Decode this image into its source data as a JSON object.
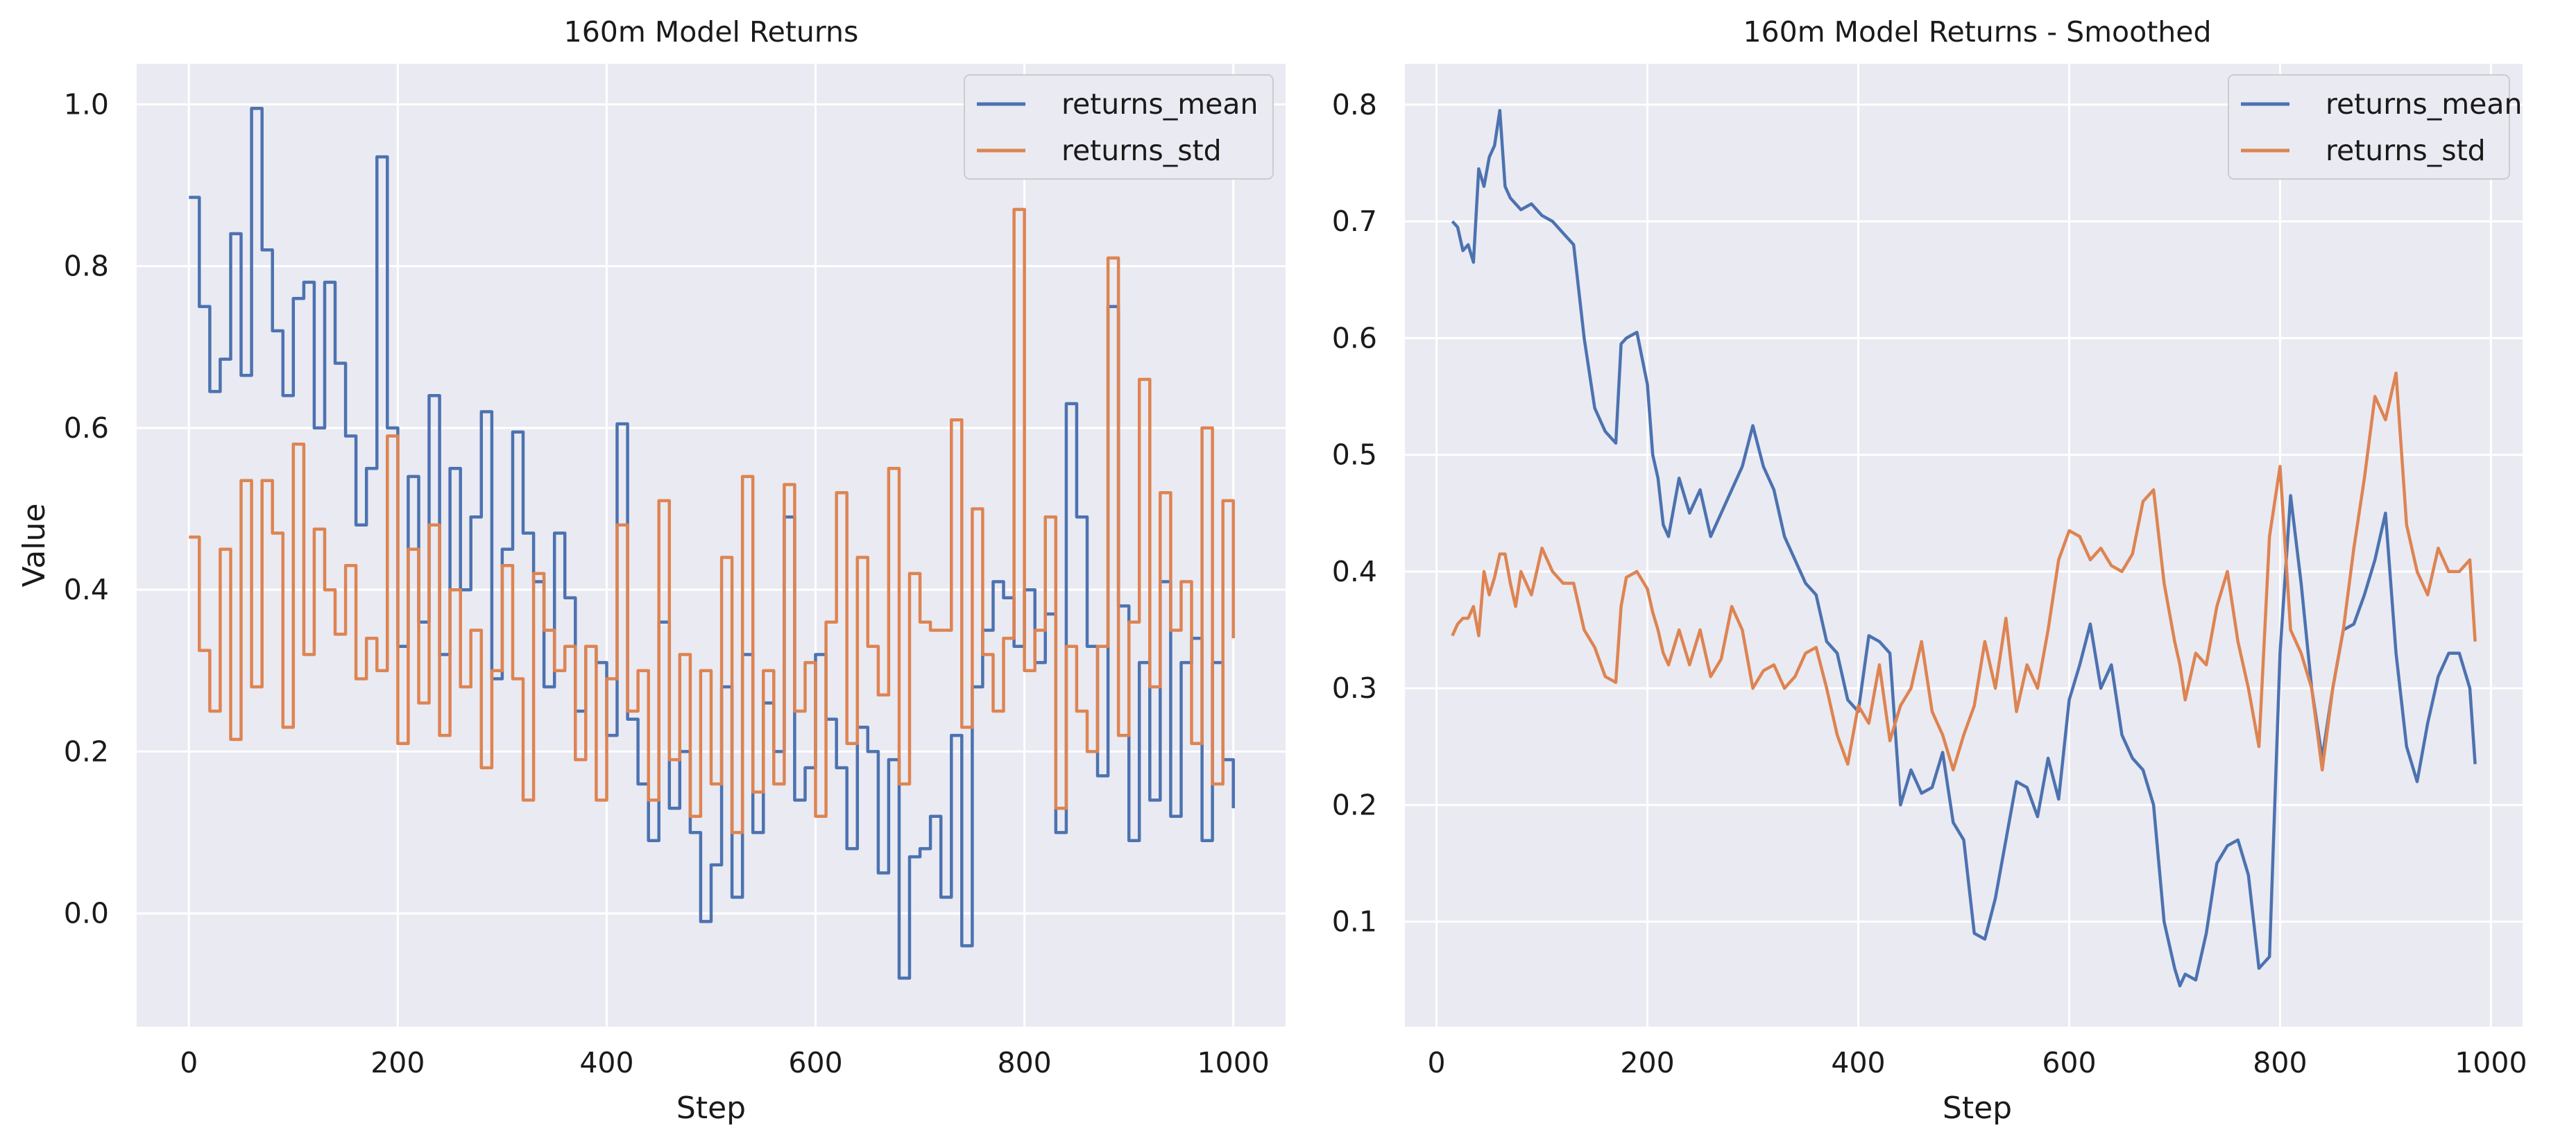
{
  "chart_data": [
    {
      "type": "line",
      "title": "160m Model Returns",
      "xlabel": "Step",
      "ylabel": "Value",
      "xlim": [
        -50,
        1050
      ],
      "ylim": [
        -0.14,
        1.05
      ],
      "xticks": [
        0,
        200,
        400,
        600,
        800,
        1000
      ],
      "yticks": [
        0.0,
        0.2,
        0.4,
        0.6,
        0.8,
        1.0
      ],
      "xtick_labels": [
        "0",
        "200",
        "400",
        "600",
        "800",
        "1000"
      ],
      "ytick_labels": [
        "0.0",
        "0.2",
        "0.4",
        "0.6",
        "0.8",
        "1.0"
      ],
      "grid": true,
      "legend_position": "top-right",
      "series": [
        {
          "name": "returns_mean",
          "color": "#4c72b0",
          "x": [
            0,
            10,
            20,
            30,
            40,
            50,
            60,
            70,
            80,
            90,
            100,
            110,
            120,
            130,
            140,
            150,
            160,
            170,
            180,
            190,
            200,
            210,
            220,
            230,
            240,
            250,
            260,
            270,
            280,
            290,
            300,
            310,
            320,
            330,
            340,
            350,
            360,
            370,
            380,
            390,
            400,
            410,
            420,
            430,
            440,
            450,
            460,
            470,
            480,
            490,
            500,
            510,
            520,
            530,
            540,
            550,
            560,
            570,
            580,
            590,
            600,
            610,
            620,
            630,
            640,
            650,
            660,
            670,
            680,
            690,
            700,
            710,
            720,
            730,
            740,
            750,
            760,
            770,
            780,
            790,
            800,
            810,
            820,
            830,
            840,
            850,
            860,
            870,
            880,
            890,
            900,
            910,
            920,
            930,
            940,
            950,
            960,
            970,
            980,
            990,
            1000
          ],
          "values": [
            0.885,
            0.75,
            0.645,
            0.685,
            0.84,
            0.665,
            0.995,
            0.82,
            0.72,
            0.64,
            0.76,
            0.78,
            0.6,
            0.78,
            0.68,
            0.59,
            0.48,
            0.55,
            0.935,
            0.6,
            0.33,
            0.54,
            0.36,
            0.64,
            0.32,
            0.55,
            0.4,
            0.49,
            0.62,
            0.29,
            0.45,
            0.595,
            0.47,
            0.41,
            0.28,
            0.47,
            0.39,
            0.25,
            0.33,
            0.31,
            0.22,
            0.605,
            0.24,
            0.16,
            0.09,
            0.36,
            0.13,
            0.2,
            0.1,
            -0.01,
            0.06,
            0.28,
            0.02,
            0.32,
            0.1,
            0.26,
            0.2,
            0.49,
            0.14,
            0.18,
            0.32,
            0.24,
            0.18,
            0.08,
            0.23,
            0.2,
            0.05,
            0.19,
            -0.08,
            0.07,
            0.08,
            0.12,
            0.02,
            0.22,
            -0.04,
            0.28,
            0.35,
            0.41,
            0.39,
            0.33,
            0.4,
            0.31,
            0.37,
            0.1,
            0.63,
            0.49,
            0.33,
            0.17,
            0.75,
            0.38,
            0.09,
            0.31,
            0.14,
            0.41,
            0.12,
            0.31,
            0.34,
            0.09,
            0.31,
            0.19,
            0.13
          ]
        },
        {
          "name": "returns_std",
          "color": "#dd8452",
          "x": [
            0,
            10,
            20,
            30,
            40,
            50,
            60,
            70,
            80,
            90,
            100,
            110,
            120,
            130,
            140,
            150,
            160,
            170,
            180,
            190,
            200,
            210,
            220,
            230,
            240,
            250,
            260,
            270,
            280,
            290,
            300,
            310,
            320,
            330,
            340,
            350,
            360,
            370,
            380,
            390,
            400,
            410,
            420,
            430,
            440,
            450,
            460,
            470,
            480,
            490,
            500,
            510,
            520,
            530,
            540,
            550,
            560,
            570,
            580,
            590,
            600,
            610,
            620,
            630,
            640,
            650,
            660,
            670,
            680,
            690,
            700,
            710,
            720,
            730,
            740,
            750,
            760,
            770,
            780,
            790,
            800,
            810,
            820,
            830,
            840,
            850,
            860,
            870,
            880,
            890,
            900,
            910,
            920,
            930,
            940,
            950,
            960,
            970,
            980,
            990,
            1000
          ],
          "values": [
            0.465,
            0.325,
            0.25,
            0.45,
            0.215,
            0.535,
            0.28,
            0.535,
            0.47,
            0.23,
            0.58,
            0.32,
            0.475,
            0.4,
            0.345,
            0.43,
            0.29,
            0.34,
            0.3,
            0.59,
            0.21,
            0.45,
            0.26,
            0.48,
            0.22,
            0.4,
            0.28,
            0.35,
            0.18,
            0.3,
            0.43,
            0.29,
            0.14,
            0.42,
            0.35,
            0.3,
            0.33,
            0.19,
            0.33,
            0.14,
            0.29,
            0.48,
            0.25,
            0.3,
            0.14,
            0.51,
            0.19,
            0.32,
            0.12,
            0.3,
            0.16,
            0.44,
            0.1,
            0.54,
            0.15,
            0.3,
            0.16,
            0.53,
            0.25,
            0.31,
            0.12,
            0.36,
            0.52,
            0.21,
            0.44,
            0.33,
            0.27,
            0.55,
            0.16,
            0.42,
            0.36,
            0.35,
            0.35,
            0.61,
            0.23,
            0.5,
            0.32,
            0.25,
            0.34,
            0.87,
            0.3,
            0.35,
            0.49,
            0.13,
            0.33,
            0.25,
            0.2,
            0.33,
            0.81,
            0.22,
            0.36,
            0.66,
            0.28,
            0.52,
            0.35,
            0.41,
            0.21,
            0.6,
            0.16,
            0.51,
            0.34
          ]
        }
      ]
    },
    {
      "type": "line",
      "title": "160m Model Returns - Smoothed",
      "xlabel": "Step",
      "ylabel": "",
      "xlim": [
        -30,
        1030
      ],
      "ylim": [
        0.01,
        0.835
      ],
      "xticks": [
        0,
        200,
        400,
        600,
        800,
        1000
      ],
      "yticks": [
        0.1,
        0.2,
        0.3,
        0.4,
        0.5,
        0.6,
        0.7,
        0.8
      ],
      "xtick_labels": [
        "0",
        "200",
        "400",
        "600",
        "800",
        "1000"
      ],
      "ytick_labels": [
        "0.1",
        "0.2",
        "0.3",
        "0.4",
        "0.5",
        "0.6",
        "0.7",
        "0.8"
      ],
      "grid": true,
      "legend_position": "top-right",
      "series": [
        {
          "name": "returns_mean",
          "color": "#4c72b0",
          "x": [
            15,
            20,
            25,
            30,
            35,
            40,
            45,
            50,
            55,
            60,
            65,
            70,
            75,
            80,
            90,
            100,
            110,
            120,
            130,
            140,
            150,
            160,
            170,
            175,
            180,
            190,
            200,
            205,
            210,
            215,
            220,
            230,
            240,
            250,
            260,
            270,
            280,
            290,
            300,
            310,
            320,
            330,
            340,
            350,
            360,
            370,
            380,
            390,
            400,
            410,
            420,
            430,
            440,
            450,
            460,
            470,
            480,
            490,
            500,
            510,
            520,
            530,
            540,
            550,
            560,
            570,
            580,
            590,
            600,
            610,
            620,
            630,
            640,
            650,
            660,
            670,
            680,
            690,
            700,
            705,
            710,
            720,
            730,
            740,
            750,
            760,
            770,
            780,
            790,
            800,
            810,
            820,
            830,
            840,
            850,
            860,
            870,
            880,
            890,
            900,
            910,
            920,
            930,
            940,
            950,
            960,
            970,
            980,
            985
          ],
          "values": [
            0.7,
            0.695,
            0.675,
            0.68,
            0.665,
            0.745,
            0.73,
            0.755,
            0.765,
            0.795,
            0.73,
            0.72,
            0.715,
            0.71,
            0.715,
            0.705,
            0.7,
            0.69,
            0.68,
            0.6,
            0.54,
            0.52,
            0.51,
            0.595,
            0.6,
            0.605,
            0.56,
            0.5,
            0.48,
            0.44,
            0.43,
            0.48,
            0.45,
            0.47,
            0.43,
            0.45,
            0.47,
            0.49,
            0.525,
            0.49,
            0.47,
            0.43,
            0.41,
            0.39,
            0.38,
            0.34,
            0.33,
            0.29,
            0.28,
            0.345,
            0.34,
            0.33,
            0.2,
            0.23,
            0.21,
            0.215,
            0.245,
            0.185,
            0.17,
            0.09,
            0.085,
            0.12,
            0.17,
            0.22,
            0.215,
            0.19,
            0.24,
            0.205,
            0.29,
            0.32,
            0.355,
            0.3,
            0.32,
            0.26,
            0.24,
            0.23,
            0.2,
            0.1,
            0.06,
            0.045,
            0.055,
            0.05,
            0.09,
            0.15,
            0.165,
            0.17,
            0.14,
            0.06,
            0.07,
            0.33,
            0.465,
            0.39,
            0.3,
            0.24,
            0.3,
            0.35,
            0.355,
            0.38,
            0.41,
            0.45,
            0.33,
            0.25,
            0.22,
            0.27,
            0.31,
            0.33,
            0.33,
            0.3,
            0.235
          ]
        },
        {
          "name": "returns_std",
          "color": "#dd8452",
          "x": [
            15,
            20,
            25,
            30,
            35,
            40,
            45,
            50,
            55,
            60,
            65,
            70,
            75,
            80,
            90,
            100,
            110,
            120,
            130,
            140,
            150,
            160,
            170,
            175,
            180,
            190,
            200,
            205,
            210,
            215,
            220,
            230,
            240,
            250,
            260,
            270,
            280,
            290,
            300,
            310,
            320,
            330,
            340,
            350,
            360,
            370,
            380,
            390,
            400,
            410,
            420,
            430,
            440,
            450,
            460,
            470,
            480,
            490,
            500,
            510,
            520,
            530,
            540,
            550,
            560,
            570,
            580,
            590,
            600,
            610,
            620,
            630,
            640,
            650,
            660,
            670,
            680,
            690,
            700,
            705,
            710,
            720,
            730,
            740,
            750,
            760,
            770,
            780,
            790,
            800,
            810,
            820,
            830,
            840,
            850,
            860,
            870,
            880,
            890,
            900,
            910,
            920,
            930,
            940,
            950,
            960,
            970,
            980,
            985
          ],
          "values": [
            0.345,
            0.355,
            0.36,
            0.36,
            0.37,
            0.345,
            0.4,
            0.38,
            0.395,
            0.415,
            0.415,
            0.39,
            0.37,
            0.4,
            0.38,
            0.42,
            0.4,
            0.39,
            0.39,
            0.35,
            0.335,
            0.31,
            0.305,
            0.37,
            0.395,
            0.4,
            0.385,
            0.365,
            0.35,
            0.33,
            0.32,
            0.35,
            0.32,
            0.35,
            0.31,
            0.325,
            0.37,
            0.35,
            0.3,
            0.315,
            0.32,
            0.3,
            0.31,
            0.33,
            0.335,
            0.3,
            0.26,
            0.235,
            0.285,
            0.27,
            0.32,
            0.255,
            0.285,
            0.3,
            0.34,
            0.28,
            0.26,
            0.23,
            0.26,
            0.285,
            0.34,
            0.3,
            0.36,
            0.28,
            0.32,
            0.3,
            0.35,
            0.41,
            0.435,
            0.43,
            0.41,
            0.42,
            0.405,
            0.4,
            0.415,
            0.46,
            0.47,
            0.39,
            0.34,
            0.32,
            0.29,
            0.33,
            0.32,
            0.37,
            0.4,
            0.34,
            0.3,
            0.25,
            0.43,
            0.49,
            0.35,
            0.33,
            0.3,
            0.23,
            0.3,
            0.35,
            0.42,
            0.48,
            0.55,
            0.53,
            0.57,
            0.44,
            0.4,
            0.38,
            0.42,
            0.4,
            0.4,
            0.41,
            0.34
          ]
        }
      ]
    }
  ]
}
